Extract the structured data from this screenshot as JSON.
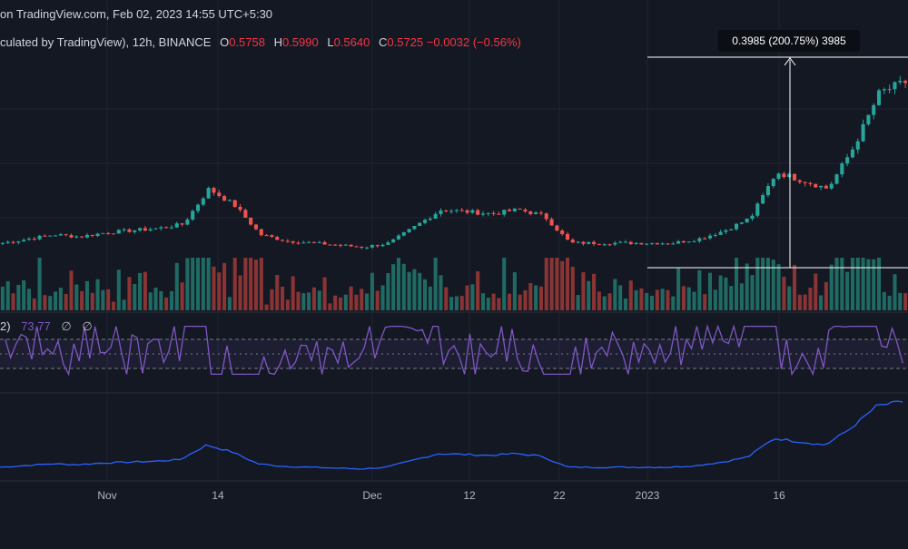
{
  "header": {
    "line1": "on TradingView.com, Feb 02, 2023 14:55 UTC+5:30",
    "line2_prefix": "culated by TradingView), 12h, BINANCE",
    "open_label": "O",
    "open": "0.5758",
    "high_label": "H",
    "high": "0.5990",
    "low_label": "L",
    "low": "0.5640",
    "close_label": "C",
    "close": "0.5725",
    "change": "−0.0032 (−0.56%)"
  },
  "measure": {
    "label": "0.3985 (200.75%) 3985"
  },
  "rsi": {
    "label": "2)",
    "value": "73.77",
    "na1": "∅",
    "na2": "∅"
  },
  "colors": {
    "background": "#141823",
    "up": "#26a69a",
    "down": "#ef5350",
    "rsi_line": "#7e57c2",
    "obv_line": "#2962ff",
    "measure": "#ffffff"
  },
  "chart_data": [
    {
      "type": "candlestick",
      "interval": "12h",
      "x_ticks": [
        "Nov",
        "14",
        "Dec",
        "12",
        "22",
        "2023",
        "16"
      ],
      "close_path_approx": [
        0.19,
        0.2,
        0.21,
        0.205,
        0.215,
        0.22,
        0.225,
        0.235,
        0.32,
        0.28,
        0.21,
        0.195,
        0.19,
        0.185,
        0.18,
        0.19,
        0.23,
        0.27,
        0.265,
        0.26,
        0.27,
        0.255,
        0.19,
        0.19,
        0.19,
        0.19,
        0.19,
        0.2,
        0.22,
        0.25,
        0.36,
        0.34,
        0.32,
        0.42,
        0.55,
        0.575
      ],
      "measurement": {
        "price_change": 0.3985,
        "percent": 200.75,
        "ticks": 3985
      },
      "volume_shown": true
    },
    {
      "type": "line",
      "indicator": "RSI",
      "last_value": 73.77,
      "bands": [
        70,
        50,
        30
      ]
    },
    {
      "type": "line",
      "indicator": "OBV",
      "trend": "rising"
    }
  ]
}
